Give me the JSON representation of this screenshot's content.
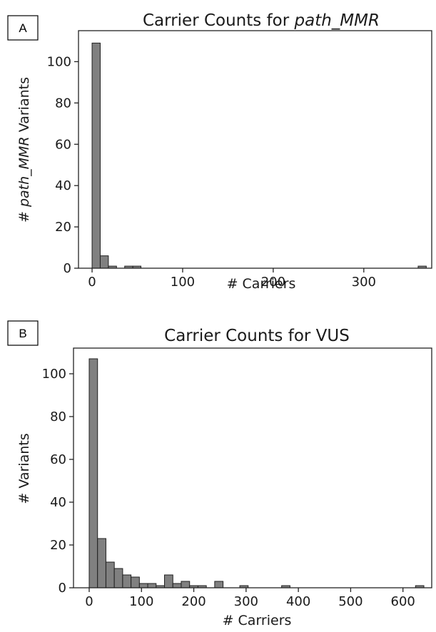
{
  "colors": {
    "bar_fill": "#808080",
    "bar_edge": "#1f1f1f"
  },
  "panels": [
    {
      "letter": "A"
    },
    {
      "letter": "B"
    }
  ],
  "chart_data": [
    {
      "type": "bar",
      "title_prefix": "Carrier Counts for ",
      "title_italic": "path_MMR",
      "title": "Carrier Counts for path_MMR",
      "xlabel": "# Carriers",
      "ylabel_prefix": "# ",
      "ylabel_italic": "path_MMR",
      "ylabel_suffix": " Variants",
      "ylabel": "# path_MMR Variants",
      "xlim": [
        -15,
        375
      ],
      "ylim": [
        0,
        115
      ],
      "xticks": [
        0,
        100,
        200,
        300
      ],
      "yticks": [
        0,
        20,
        40,
        60,
        80,
        100
      ],
      "bins": [
        {
          "x0": 0,
          "x1": 9,
          "value": 109
        },
        {
          "x0": 9,
          "x1": 18,
          "value": 6
        },
        {
          "x0": 18,
          "x1": 27,
          "value": 1
        },
        {
          "x0": 27,
          "x1": 36,
          "value": 0
        },
        {
          "x0": 36,
          "x1": 45,
          "value": 1
        },
        {
          "x0": 45,
          "x1": 54,
          "value": 1
        },
        {
          "x0": 360,
          "x1": 369,
          "value": 1
        }
      ]
    },
    {
      "type": "bar",
      "title_prefix": "Carrier Counts for VUS",
      "title_italic": "",
      "title": "Carrier Counts for VUS",
      "xlabel": "# Carriers",
      "ylabel_prefix": "# Variants",
      "ylabel_italic": "",
      "ylabel_suffix": "",
      "ylabel": "# Variants",
      "xlim": [
        -30,
        655
      ],
      "ylim": [
        0,
        112
      ],
      "xticks": [
        0,
        100,
        200,
        300,
        400,
        500,
        600
      ],
      "yticks": [
        0,
        20,
        40,
        60,
        80,
        100
      ],
      "bins": [
        {
          "x0": 0,
          "x1": 16,
          "value": 107
        },
        {
          "x0": 16,
          "x1": 32,
          "value": 23
        },
        {
          "x0": 32,
          "x1": 48,
          "value": 12
        },
        {
          "x0": 48,
          "x1": 64,
          "value": 9
        },
        {
          "x0": 64,
          "x1": 80,
          "value": 6
        },
        {
          "x0": 80,
          "x1": 96,
          "value": 5
        },
        {
          "x0": 96,
          "x1": 112,
          "value": 2
        },
        {
          "x0": 112,
          "x1": 128,
          "value": 2
        },
        {
          "x0": 128,
          "x1": 144,
          "value": 1
        },
        {
          "x0": 144,
          "x1": 160,
          "value": 6
        },
        {
          "x0": 160,
          "x1": 176,
          "value": 2
        },
        {
          "x0": 176,
          "x1": 192,
          "value": 3
        },
        {
          "x0": 192,
          "x1": 208,
          "value": 1
        },
        {
          "x0": 208,
          "x1": 224,
          "value": 1
        },
        {
          "x0": 240,
          "x1": 256,
          "value": 3
        },
        {
          "x0": 288,
          "x1": 304,
          "value": 1
        },
        {
          "x0": 368,
          "x1": 384,
          "value": 1
        },
        {
          "x0": 624,
          "x1": 640,
          "value": 1
        }
      ]
    }
  ]
}
